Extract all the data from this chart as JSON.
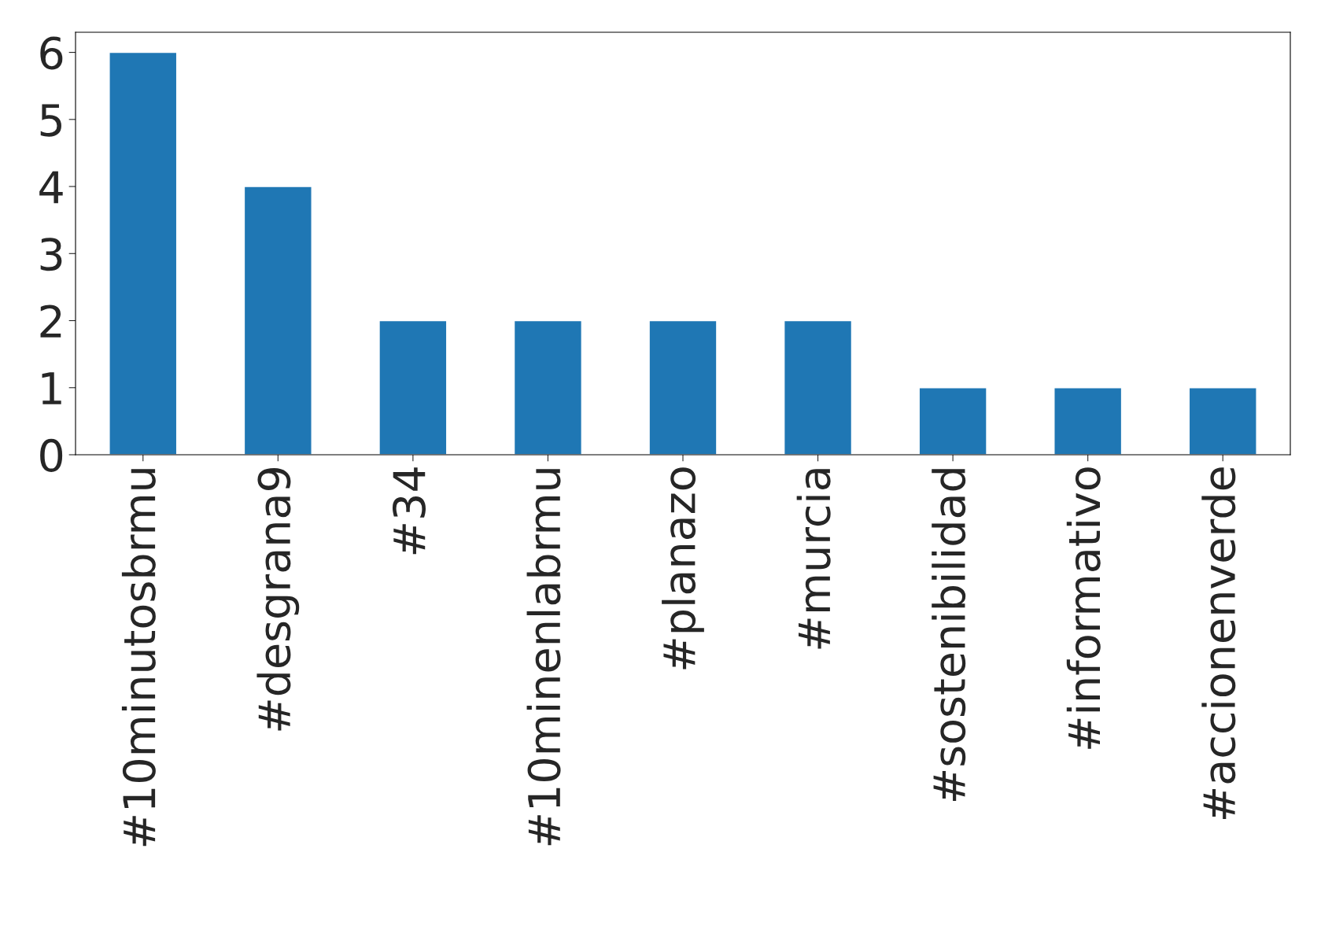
{
  "chart_data": {
    "type": "bar",
    "categories": [
      "#10minutosbrmu",
      "#desgrana9",
      "#34",
      "#10minenlabrmu",
      "#planazo",
      "#murcia",
      "#sostenibilidad",
      "#informativo",
      "#accionenverde"
    ],
    "values": [
      6,
      4,
      2,
      2,
      2,
      2,
      1,
      1,
      1
    ],
    "color": "#1f77b4",
    "ylim": [
      0,
      6.3
    ],
    "yticks": [
      0,
      1,
      2,
      3,
      4,
      5,
      6
    ],
    "grid": false
  }
}
